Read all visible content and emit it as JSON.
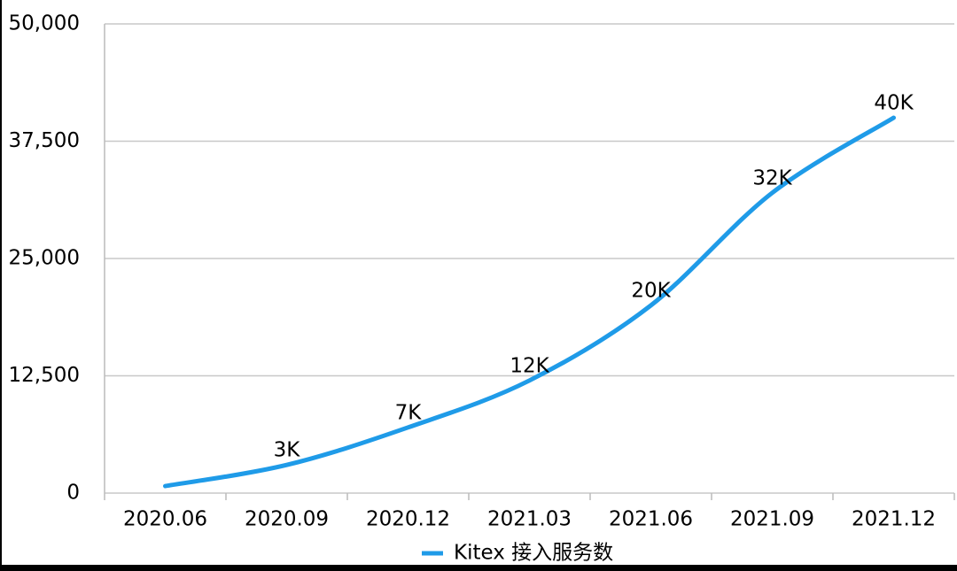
{
  "chart_data": {
    "type": "line",
    "categories": [
      "2020.06",
      "2020.09",
      "2020.12",
      "2021.03",
      "2021.06",
      "2021.09",
      "2021.12"
    ],
    "series": [
      {
        "name": "Kitex 接入服务数",
        "color": "#1f9be8",
        "values": [
          750,
          3000,
          7000,
          12000,
          20000,
          32000,
          40000
        ],
        "value_labels": [
          null,
          "3K",
          "7K",
          "12K",
          "20K",
          "32K",
          "40K"
        ]
      }
    ],
    "ylim": [
      0,
      50000
    ],
    "yticks": [
      0,
      {
        "value": 12500,
        "label": "12,500"
      },
      {
        "value": 25000,
        "label": "25,000"
      },
      {
        "value": 37500,
        "label": "37,500"
      },
      {
        "value": 50000,
        "label": "50,000"
      }
    ],
    "grid": true,
    "legend": "bottom"
  }
}
